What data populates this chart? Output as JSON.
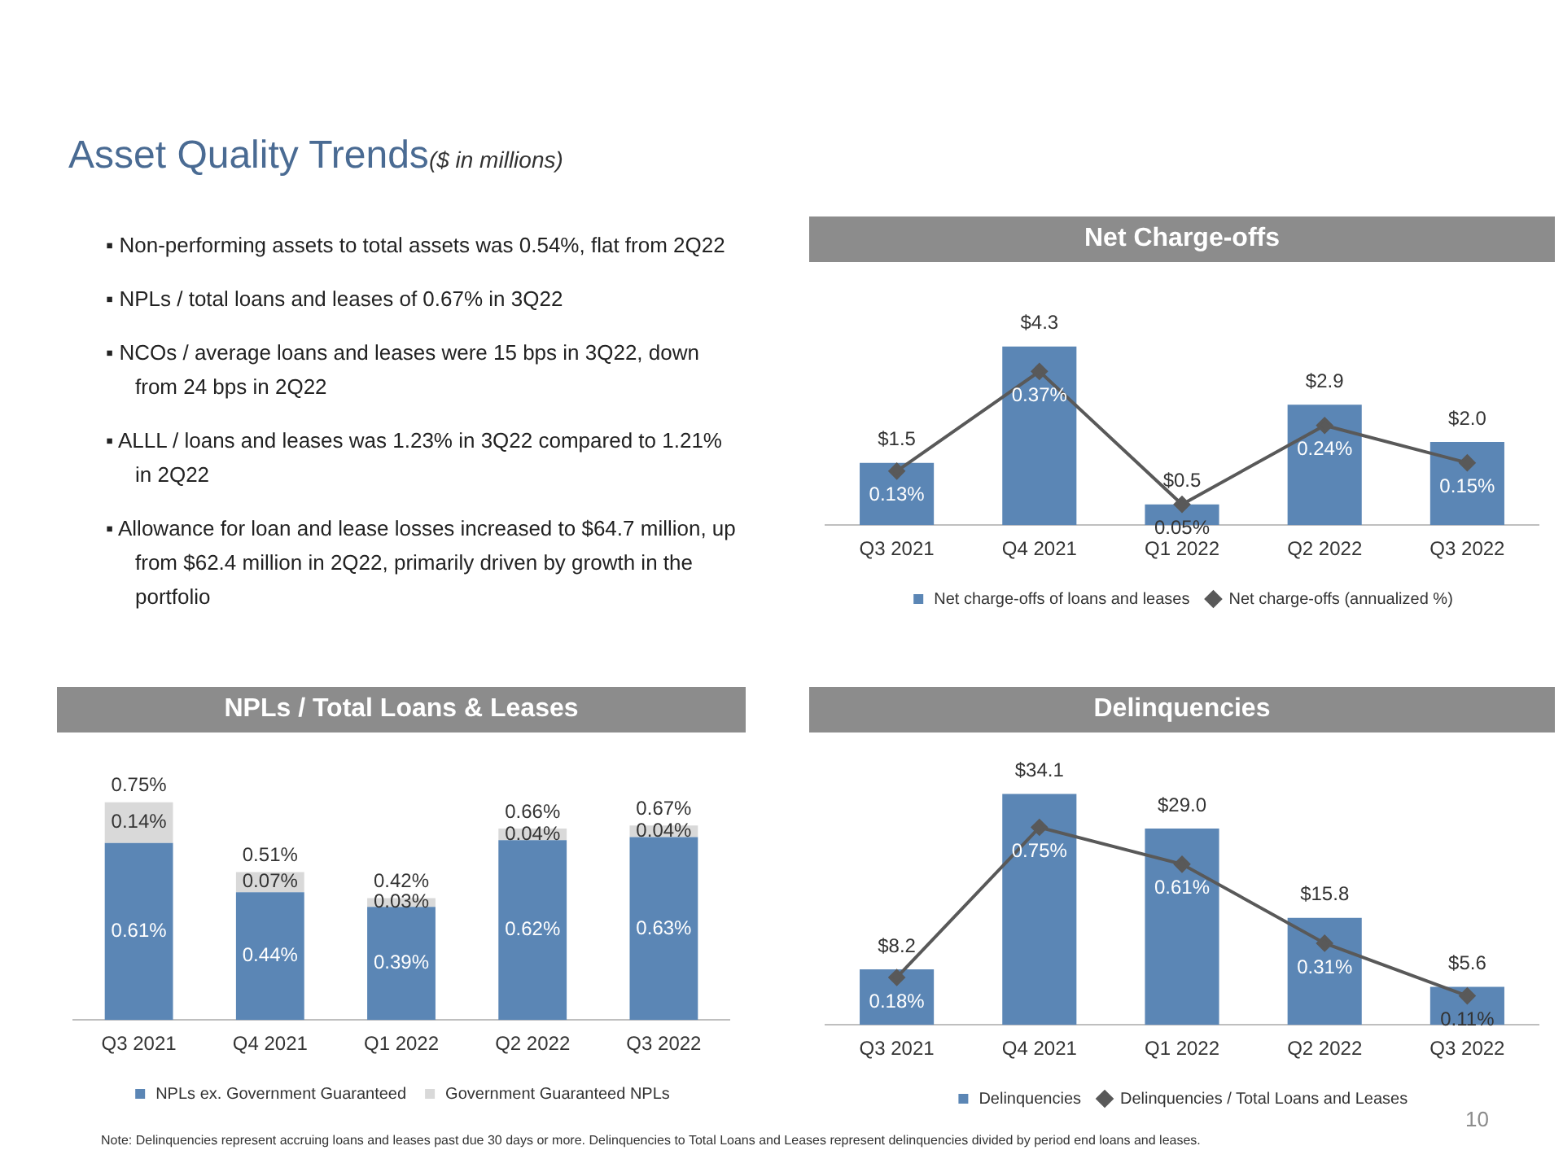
{
  "chart_data": [
    {
      "type": "other",
      "title": "Asset Quality Trends",
      "subtitle": "($ in millions)",
      "annotations": [
        "▪ Non-performing assets to total assets was 0.54%, flat from 2Q22",
        "▪ NPLs / total loans and leases of 0.67% in 3Q22",
        "▪ NCOs / average loans and leases were 15 bps in 3Q22, down from 24 bps in 2Q22",
        "▪ ALLL / loans and leases was 1.23% in 3Q22 compared to 1.21% in 2Q22",
        "▪ Allowance for loan and lease losses increased to $64.7 million, up from $62.4 million in 2Q22, primarily driven by growth in the portfolio"
      ]
    },
    {
      "type": "bar",
      "title": "Net Charge-offs",
      "categories": [
        "Q3 2021",
        "Q4 2021",
        "Q1 2022",
        "Q2 2022",
        "Q3 2022"
      ],
      "tick_labels": "x",
      "legend": "bottom",
      "marker": "diamond",
      "series": [
        {
          "name": "Net charge-offs of loans and leases",
          "type": "bar",
          "color": "#5b86b5",
          "values": [
            1.5,
            4.3,
            0.5,
            2.9,
            2.0
          ],
          "value_labels": [
            "$1.5",
            "$4.3",
            "$0.5",
            "$2.9",
            "$2.0"
          ]
        },
        {
          "name": "Net charge-offs (annualized %)",
          "type": "line",
          "axis": "y2",
          "color": "#595959",
          "values": [
            0.13,
            0.37,
            0.05,
            0.24,
            0.15
          ],
          "value_labels": [
            "0.13%",
            "0.37%",
            "0.05%",
            "0.24%",
            "0.15%"
          ]
        }
      ]
    },
    {
      "type": "bar",
      "title": "NPLs / Total Loans & Leases",
      "categories": [
        "Q3 2021",
        "Q4 2021",
        "Q1 2022",
        "Q2 2022",
        "Q3 2022"
      ],
      "tick_labels": "x",
      "legend": "bottom",
      "stacked": true,
      "totals": [
        "0.75%",
        "0.51%",
        "0.42%",
        "0.66%",
        "0.67%"
      ],
      "series": [
        {
          "name": "NPLs ex. Government Guaranteed",
          "type": "bar",
          "color": "#5b86b5",
          "values": [
            0.61,
            0.44,
            0.39,
            0.62,
            0.63
          ],
          "value_labels": [
            "0.61%",
            "0.44%",
            "0.39%",
            "0.62%",
            "0.63%"
          ]
        },
        {
          "name": "Government Guaranteed NPLs",
          "type": "bar",
          "color": "#d9d9d9",
          "values": [
            0.14,
            0.07,
            0.03,
            0.04,
            0.04
          ],
          "value_labels": [
            "0.14%",
            "0.07%",
            "0.03%",
            "0.04%",
            "0.04%"
          ]
        }
      ]
    },
    {
      "type": "bar",
      "title": "Delinquencies",
      "categories": [
        "Q3 2021",
        "Q4 2021",
        "Q1 2022",
        "Q2 2022",
        "Q3 2022"
      ],
      "tick_labels": "x",
      "legend": "bottom",
      "marker": "diamond",
      "series": [
        {
          "name": "Delinquencies",
          "type": "bar",
          "color": "#5b86b5",
          "values": [
            8.2,
            34.1,
            29.0,
            15.8,
            5.6
          ],
          "value_labels": [
            "$8.2",
            "$34.1",
            "$29.0",
            "$15.8",
            "$5.6"
          ]
        },
        {
          "name": "Delinquencies / Total Loans and Leases",
          "type": "line",
          "axis": "y2",
          "color": "#595959",
          "values": [
            0.18,
            0.75,
            0.61,
            0.31,
            0.11
          ],
          "value_labels": [
            "0.18%",
            "0.75%",
            "0.61%",
            "0.31%",
            "0.11%"
          ]
        }
      ],
      "annotations": [
        "Note: Delinquencies represent accruing loans and leases past due 30 days or more. Delinquencies to Total Loans and Leases represent delinquencies divided by period end loans and leases.",
        "10"
      ]
    }
  ]
}
